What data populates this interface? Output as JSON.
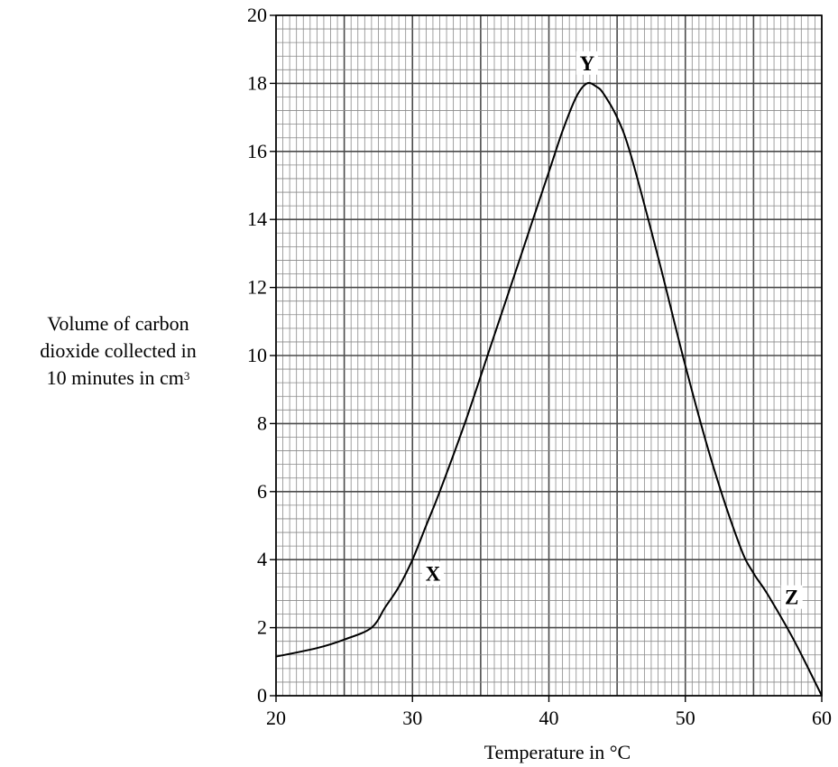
{
  "chart_data": {
    "type": "line",
    "xlabel": "Temperature in °C",
    "ylabel_lines": [
      "Volume of carbon",
      "dioxide collected in",
      "10 minutes in cm"
    ],
    "ylabel_superscript": "3",
    "xlim": [
      20,
      60
    ],
    "ylim": [
      0,
      20
    ],
    "x_ticks": [
      "20",
      "30",
      "40",
      "50",
      "60"
    ],
    "y_ticks": [
      "0",
      "2",
      "4",
      "6",
      "8",
      "10",
      "12",
      "14",
      "16",
      "18",
      "20"
    ],
    "grid": true,
    "x": [
      20,
      23,
      25,
      27,
      28,
      29,
      30,
      31,
      32,
      34,
      36,
      38,
      40,
      41,
      42,
      42.8,
      43.5,
      44,
      45,
      46,
      48,
      50,
      52,
      54,
      55,
      56,
      58,
      60
    ],
    "y": [
      1.15,
      1.4,
      1.65,
      2.0,
      2.6,
      3.2,
      4.0,
      5.0,
      6.0,
      8.2,
      10.6,
      13.0,
      15.4,
      16.6,
      17.6,
      18.0,
      17.9,
      17.7,
      17.0,
      15.9,
      12.9,
      9.7,
      6.8,
      4.4,
      3.6,
      3.0,
      1.6,
      0.0
    ],
    "line_color": "#000000",
    "annotations": [
      {
        "label": "X",
        "x": 31.5,
        "y": 3.6
      },
      {
        "label": "Y",
        "x": 42.8,
        "y": 18.6
      },
      {
        "label": "Z",
        "x": 57.8,
        "y": 2.9
      }
    ]
  }
}
